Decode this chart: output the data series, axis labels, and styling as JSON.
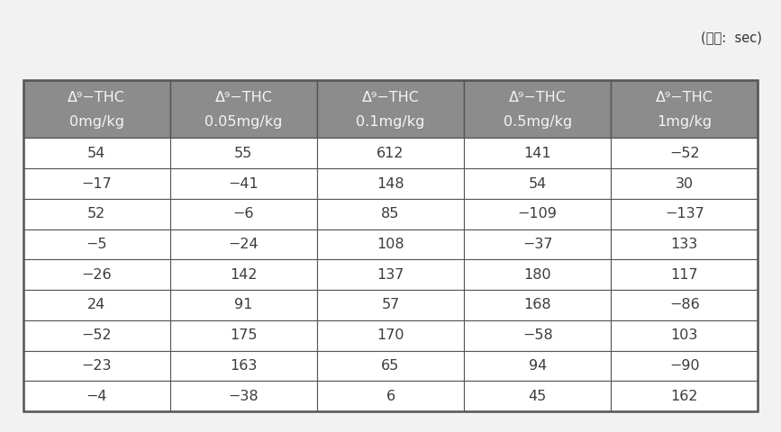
{
  "unit_label": "(단위:  sec)",
  "col_headers_line1": [
    "Δ⁹−THC",
    "Δ⁹−THC",
    "Δ⁹−THC",
    "Δ⁹−THC",
    "Δ⁹−THC"
  ],
  "col_headers_line2": [
    "0mg/kg",
    "0.05mg/kg",
    "0.1mg/kg",
    "0.5mg/kg",
    "1mg/kg"
  ],
  "data": [
    [
      "54",
      "55",
      "612",
      "141",
      "−52"
    ],
    [
      "−17",
      "−41",
      "148",
      "54",
      "30"
    ],
    [
      "52",
      "−6",
      "85",
      "−109",
      "−137"
    ],
    [
      "−5",
      "−24",
      "108",
      "−37",
      "133"
    ],
    [
      "−26",
      "142",
      "137",
      "180",
      "117"
    ],
    [
      "24",
      "91",
      "57",
      "168",
      "−86"
    ],
    [
      "−52",
      "175",
      "170",
      "−58",
      "103"
    ],
    [
      "−23",
      "163",
      "65",
      "94",
      "−90"
    ],
    [
      "−4",
      "−38",
      "6",
      "45",
      "162"
    ]
  ],
  "header_bg_color": "#8c8c8c",
  "header_text_color": "#f5f5f5",
  "cell_bg_color": "#ffffff",
  "cell_text_color": "#3c3c3c",
  "border_color": "#555555",
  "outer_border_color": "#555555",
  "background_color": "#f2f2f2",
  "header_fontsize": 11.5,
  "data_fontsize": 11.5,
  "unit_fontsize": 10.5
}
